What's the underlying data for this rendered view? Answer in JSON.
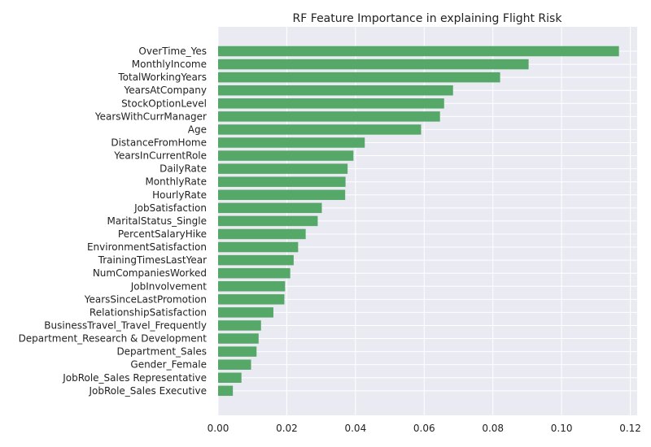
{
  "chart_data": {
    "type": "bar",
    "orientation": "horizontal",
    "title": "RF Feature Importance in explaining Flight Risk",
    "xlabel": "",
    "ylabel": "",
    "xlim": [
      0,
      0.122
    ],
    "xticks": [
      "0.00",
      "0.02",
      "0.04",
      "0.06",
      "0.08",
      "0.10",
      "0.12"
    ],
    "xtick_values": [
      0,
      0.02,
      0.04,
      0.06,
      0.08,
      0.1,
      0.12
    ],
    "grid": true,
    "bar_color": "#55a868",
    "background_color": "#eaeaf2",
    "categories": [
      "OverTime_Yes",
      "MonthlyIncome",
      "TotalWorkingYears",
      "YearsAtCompany",
      "StockOptionLevel",
      "YearsWithCurrManager",
      "Age",
      "DistanceFromHome",
      "YearsInCurrentRole",
      "DailyRate",
      "MonthlyRate",
      "HourlyRate",
      "JobSatisfaction",
      "MaritalStatus_Single",
      "PercentSalaryHike",
      "EnvironmentSatisfaction",
      "TrainingTimesLastYear",
      "NumCompaniesWorked",
      "JobInvolvement",
      "YearsSinceLastPromotion",
      "RelationshipSatisfaction",
      "BusinessTravel_Travel_Frequently",
      "Department_Research & Development",
      "Department_Sales",
      "Gender_Female",
      "JobRole_Sales Representative",
      "JobRole_Sales Executive"
    ],
    "values": [
      0.1167,
      0.0904,
      0.0821,
      0.0684,
      0.0658,
      0.0646,
      0.0591,
      0.0427,
      0.0394,
      0.0377,
      0.0371,
      0.037,
      0.0302,
      0.029,
      0.0255,
      0.0233,
      0.022,
      0.021,
      0.0195,
      0.0193,
      0.0161,
      0.0125,
      0.0118,
      0.0112,
      0.0096,
      0.0068,
      0.0043
    ]
  }
}
